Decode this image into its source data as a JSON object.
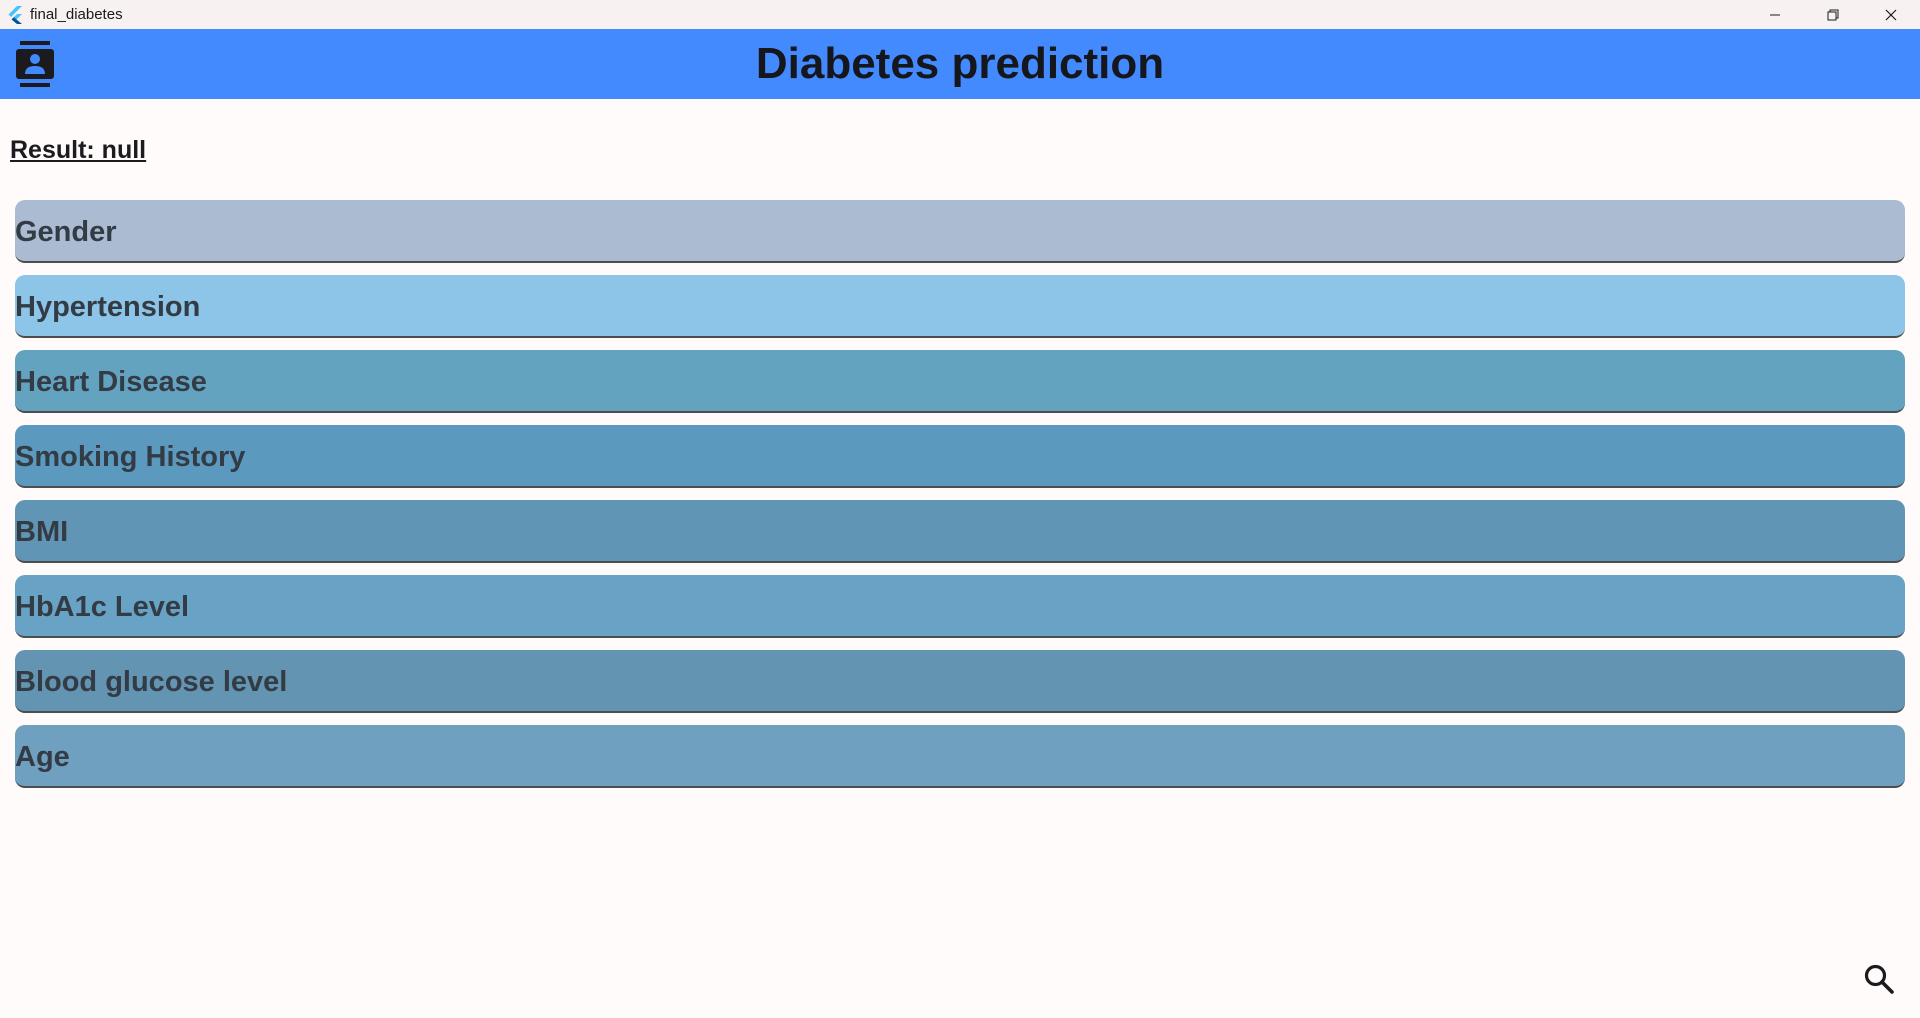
{
  "window": {
    "title": "final_diabetes"
  },
  "appbar": {
    "title": "Diabetes prediction",
    "color": "#448aff"
  },
  "result": {
    "text": "Result: null"
  },
  "fields": [
    {
      "label": "Gender",
      "color": "#abbbd2"
    },
    {
      "label": "Hypertension",
      "color": "#8dc5e8"
    },
    {
      "label": "Heart Disease",
      "color": "#64a3bf"
    },
    {
      "label": "Smoking History",
      "color": "#5b9abe"
    },
    {
      "label": "BMI",
      "color": "#6195b5"
    },
    {
      "label": "HbA1c Level",
      "color": "#68a3c5"
    },
    {
      "label": "Blood glucose level",
      "color": "#6394b2"
    },
    {
      "label": "Age",
      "color": "#6fa0bf"
    }
  ],
  "icons": {
    "app_logo": "flutter-logo-icon",
    "menu": "contacts-icon",
    "search": "search-icon",
    "minimize": "minimize-icon",
    "restore": "restore-icon",
    "close": "close-icon"
  }
}
